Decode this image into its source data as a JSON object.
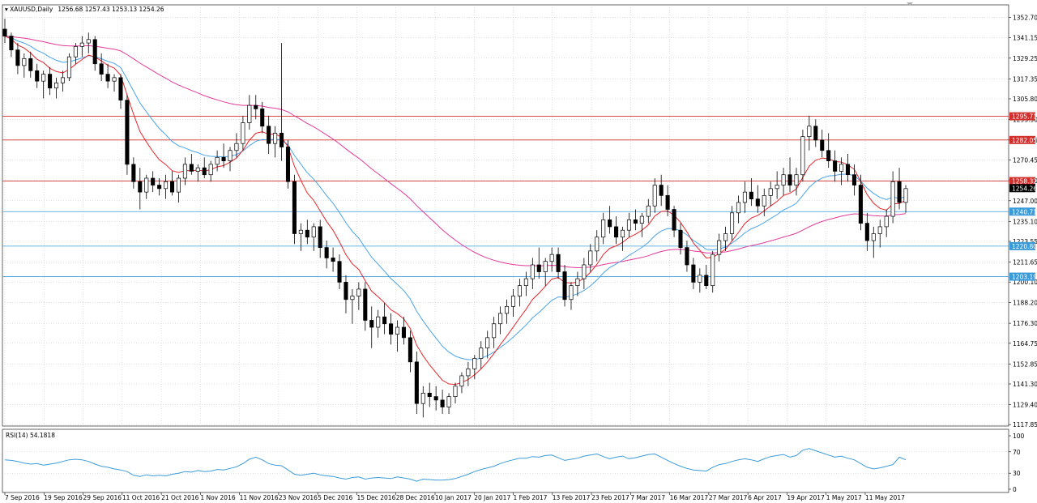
{
  "header": {
    "symbol": "XAUUSD,Daily",
    "ohlc": "1256.68 1257.43 1253.13 1254.26"
  },
  "rsi_header": "RSI(14) 54.1818",
  "colors": {
    "background": "#ffffff",
    "grid": "#c0c0c0",
    "bull_candle": "#ffffff",
    "bear_candle": "#000000",
    "ma_fast": "#e8262b",
    "ma_mid": "#4aa3e8",
    "ma_slow": "#e23a9b",
    "resistance_line": "#d0312d",
    "support_line": "#3b9bd9",
    "rsi_line": "#3b9bd9"
  },
  "chart_data": [
    {
      "type": "candlestick",
      "title": "XAUUSD,Daily",
      "ylim": [
        1117.0,
        1360.0
      ],
      "y_ticks": [
        "1352.70",
        "1341.15",
        "1329.25",
        "1317.35",
        "1305.80",
        "1293.90",
        "1282.05",
        "1270.45",
        "1258.60",
        "1247.00",
        "1235.10",
        "1223.55",
        "1211.65",
        "1200.10",
        "1188.20",
        "1176.30",
        "1164.75",
        "1152.85",
        "1141.30",
        "1129.40",
        "1117.85"
      ],
      "x_ticks": [
        "7 Sep 2016",
        "19 Sep 2016",
        "29 Sep 2016",
        "11 Oct 2016",
        "21 Oct 2016",
        "1 Nov 2016",
        "11 Nov 2016",
        "23 Nov 2016",
        "5 Dec 2016",
        "15 Dec 2016",
        "28 Dec 2016",
        "10 Jan 2017",
        "20 Jan 2017",
        "1 Feb 2017",
        "13 Feb 2017",
        "23 Feb 2017",
        "7 Mar 2017",
        "16 Mar 2017",
        "27 Mar 2017",
        "6 Apr 2017",
        "19 Apr 2017",
        "1 May 2017",
        "11 May 2017"
      ],
      "horizontal_lines": [
        {
          "price": 1295.71,
          "label": "1295.71",
          "kind": "resistance"
        },
        {
          "price": 1282.05,
          "label": "1282.05",
          "kind": "resistance"
        },
        {
          "price": 1258.32,
          "label": "1258.32",
          "kind": "resistance"
        },
        {
          "price": 1240.71,
          "label": "1240.71",
          "kind": "support"
        },
        {
          "price": 1220.8,
          "label": "1220.80",
          "kind": "support"
        },
        {
          "price": 1203.19,
          "label": "1203.19",
          "kind": "support"
        }
      ],
      "current_price": {
        "price": 1254.26,
        "label": "1254.26"
      },
      "candles_ohlc": [
        [
          1346,
          1352,
          1338,
          1342
        ],
        [
          1342,
          1344,
          1330,
          1334
        ],
        [
          1334,
          1338,
          1320,
          1325
        ],
        [
          1325,
          1332,
          1318,
          1329
        ],
        [
          1329,
          1333,
          1318,
          1322
        ],
        [
          1322,
          1326,
          1312,
          1316
        ],
        [
          1316,
          1322,
          1306,
          1320
        ],
        [
          1320,
          1324,
          1308,
          1312
        ],
        [
          1312,
          1318,
          1306,
          1315
        ],
        [
          1315,
          1322,
          1310,
          1318
        ],
        [
          1318,
          1332,
          1316,
          1330
        ],
        [
          1330,
          1338,
          1326,
          1336
        ],
        [
          1336,
          1342,
          1330,
          1338
        ],
        [
          1338,
          1344,
          1332,
          1340
        ],
        [
          1340,
          1342,
          1322,
          1326
        ],
        [
          1326,
          1332,
          1316,
          1320
        ],
        [
          1320,
          1326,
          1312,
          1316
        ],
        [
          1316,
          1320,
          1310,
          1318
        ],
        [
          1318,
          1320,
          1300,
          1305
        ],
        [
          1305,
          1308,
          1262,
          1268
        ],
        [
          1268,
          1272,
          1254,
          1258
        ],
        [
          1258,
          1266,
          1242,
          1252
        ],
        [
          1252,
          1262,
          1248,
          1260
        ],
        [
          1260,
          1264,
          1252,
          1256
        ],
        [
          1256,
          1260,
          1250,
          1254
        ],
        [
          1254,
          1262,
          1248,
          1258
        ],
        [
          1258,
          1264,
          1250,
          1252
        ],
        [
          1252,
          1262,
          1246,
          1260
        ],
        [
          1260,
          1272,
          1256,
          1268
        ],
        [
          1268,
          1274,
          1262,
          1264
        ],
        [
          1264,
          1268,
          1258,
          1266
        ],
        [
          1266,
          1272,
          1260,
          1262
        ],
        [
          1262,
          1270,
          1258,
          1268
        ],
        [
          1268,
          1276,
          1264,
          1272
        ],
        [
          1272,
          1280,
          1266,
          1270
        ],
        [
          1270,
          1278,
          1264,
          1276
        ],
        [
          1276,
          1286,
          1272,
          1280
        ],
        [
          1280,
          1296,
          1276,
          1292
        ],
        [
          1292,
          1308,
          1288,
          1302
        ],
        [
          1302,
          1308,
          1294,
          1300
        ],
        [
          1300,
          1304,
          1286,
          1290
        ],
        [
          1290,
          1296,
          1274,
          1280
        ],
        [
          1280,
          1290,
          1272,
          1286
        ],
        [
          1286,
          1338,
          1270,
          1278
        ],
        [
          1278,
          1282,
          1254,
          1258
        ],
        [
          1258,
          1262,
          1222,
          1228
        ],
        [
          1228,
          1234,
          1218,
          1230
        ],
        [
          1230,
          1236,
          1222,
          1226
        ],
        [
          1226,
          1234,
          1218,
          1232
        ],
        [
          1232,
          1236,
          1214,
          1220
        ],
        [
          1220,
          1224,
          1208,
          1214
        ],
        [
          1214,
          1220,
          1206,
          1212
        ],
        [
          1212,
          1216,
          1196,
          1200
        ],
        [
          1200,
          1204,
          1182,
          1190
        ],
        [
          1190,
          1196,
          1176,
          1192
        ],
        [
          1192,
          1200,
          1184,
          1196
        ],
        [
          1196,
          1200,
          1172,
          1178
        ],
        [
          1178,
          1186,
          1162,
          1174
        ],
        [
          1174,
          1184,
          1168,
          1180
        ],
        [
          1180,
          1188,
          1170,
          1176
        ],
        [
          1176,
          1182,
          1164,
          1170
        ],
        [
          1170,
          1178,
          1160,
          1174
        ],
        [
          1174,
          1180,
          1164,
          1168
        ],
        [
          1168,
          1172,
          1148,
          1154
        ],
        [
          1154,
          1160,
          1124,
          1130
        ],
        [
          1130,
          1140,
          1122,
          1136
        ],
        [
          1136,
          1142,
          1128,
          1134
        ],
        [
          1134,
          1140,
          1126,
          1132
        ],
        [
          1132,
          1138,
          1124,
          1128
        ],
        [
          1128,
          1136,
          1124,
          1134
        ],
        [
          1134,
          1142,
          1130,
          1140
        ],
        [
          1140,
          1148,
          1136,
          1146
        ],
        [
          1146,
          1154,
          1140,
          1150
        ],
        [
          1150,
          1158,
          1144,
          1156
        ],
        [
          1156,
          1166,
          1150,
          1162
        ],
        [
          1162,
          1172,
          1156,
          1168
        ],
        [
          1168,
          1180,
          1162,
          1176
        ],
        [
          1176,
          1186,
          1170,
          1182
        ],
        [
          1182,
          1190,
          1176,
          1186
        ],
        [
          1186,
          1196,
          1180,
          1192
        ],
        [
          1192,
          1202,
          1186,
          1198
        ],
        [
          1198,
          1206,
          1192,
          1202
        ],
        [
          1202,
          1214,
          1196,
          1210
        ],
        [
          1210,
          1220,
          1202,
          1206
        ],
        [
          1206,
          1214,
          1198,
          1212
        ],
        [
          1212,
          1220,
          1206,
          1216
        ],
        [
          1216,
          1220,
          1202,
          1206
        ],
        [
          1206,
          1210,
          1186,
          1190
        ],
        [
          1190,
          1200,
          1184,
          1198
        ],
        [
          1198,
          1206,
          1192,
          1202
        ],
        [
          1202,
          1214,
          1196,
          1210
        ],
        [
          1210,
          1222,
          1206,
          1218
        ],
        [
          1218,
          1230,
          1212,
          1226
        ],
        [
          1226,
          1240,
          1222,
          1236
        ],
        [
          1236,
          1244,
          1228,
          1232
        ],
        [
          1232,
          1238,
          1222,
          1226
        ],
        [
          1226,
          1232,
          1218,
          1230
        ],
        [
          1230,
          1240,
          1226,
          1236
        ],
        [
          1236,
          1242,
          1230,
          1234
        ],
        [
          1234,
          1240,
          1226,
          1238
        ],
        [
          1238,
          1248,
          1234,
          1244
        ],
        [
          1244,
          1260,
          1240,
          1256
        ],
        [
          1256,
          1262,
          1244,
          1250
        ],
        [
          1250,
          1256,
          1238,
          1242
        ],
        [
          1242,
          1244,
          1226,
          1230
        ],
        [
          1230,
          1234,
          1216,
          1220
        ],
        [
          1220,
          1224,
          1206,
          1210
        ],
        [
          1210,
          1214,
          1196,
          1200
        ],
        [
          1200,
          1208,
          1194,
          1204
        ],
        [
          1204,
          1210,
          1196,
          1198
        ],
        [
          1198,
          1218,
          1194,
          1216
        ],
        [
          1216,
          1228,
          1212,
          1224
        ],
        [
          1224,
          1232,
          1218,
          1228
        ],
        [
          1228,
          1244,
          1224,
          1240
        ],
        [
          1240,
          1250,
          1234,
          1246
        ],
        [
          1246,
          1258,
          1240,
          1252
        ],
        [
          1252,
          1260,
          1244,
          1248
        ],
        [
          1248,
          1256,
          1240,
          1244
        ],
        [
          1244,
          1254,
          1238,
          1250
        ],
        [
          1250,
          1258,
          1244,
          1254
        ],
        [
          1254,
          1264,
          1248,
          1256
        ],
        [
          1256,
          1266,
          1250,
          1262
        ],
        [
          1262,
          1272,
          1252,
          1256
        ],
        [
          1256,
          1266,
          1250,
          1262
        ],
        [
          1262,
          1288,
          1258,
          1284
        ],
        [
          1284,
          1296,
          1276,
          1290
        ],
        [
          1290,
          1294,
          1278,
          1282
        ],
        [
          1282,
          1288,
          1272,
          1276
        ],
        [
          1276,
          1286,
          1266,
          1270
        ],
        [
          1270,
          1276,
          1258,
          1264
        ],
        [
          1264,
          1272,
          1256,
          1268
        ],
        [
          1268,
          1274,
          1258,
          1262
        ],
        [
          1262,
          1268,
          1250,
          1256
        ],
        [
          1256,
          1262,
          1230,
          1234
        ],
        [
          1234,
          1240,
          1218,
          1224
        ],
        [
          1224,
          1232,
          1214,
          1228
        ],
        [
          1228,
          1236,
          1220,
          1232
        ],
        [
          1232,
          1242,
          1226,
          1238
        ],
        [
          1238,
          1264,
          1234,
          1258
        ],
        [
          1258,
          1266,
          1242,
          1246
        ],
        [
          1246,
          1256,
          1240,
          1254
        ]
      ],
      "series": [
        {
          "name": "",
          "role": "ma_fast"
        },
        {
          "name": "",
          "role": "ma_mid"
        },
        {
          "name": "",
          "role": "ma_slow"
        }
      ]
    },
    {
      "type": "line",
      "title": "RSI(14) 54.1818",
      "ylim": [
        0,
        100
      ],
      "y_ticks": [
        "100",
        "70",
        "30",
        "0"
      ],
      "levels": [
        70,
        30
      ],
      "values": [
        55,
        54,
        52,
        49,
        47,
        48,
        45,
        47,
        49,
        52,
        55,
        56,
        55,
        52,
        47,
        43,
        41,
        38,
        36,
        33,
        26,
        24,
        27,
        25,
        26,
        25,
        28,
        30,
        33,
        32,
        35,
        33,
        34,
        37,
        36,
        39,
        42,
        48,
        56,
        60,
        55,
        48,
        45,
        44,
        36,
        28,
        26,
        28,
        30,
        27,
        25,
        24,
        21,
        19,
        22,
        23,
        19,
        21,
        22,
        21,
        20,
        23,
        21,
        19,
        15,
        19,
        18,
        17,
        17,
        18,
        20,
        24,
        28,
        33,
        37,
        40,
        43,
        48,
        52,
        55,
        58,
        58,
        61,
        60,
        63,
        64,
        59,
        54,
        56,
        58,
        62,
        64,
        66,
        61,
        57,
        60,
        62,
        57,
        59,
        62,
        65,
        66,
        60,
        54,
        48,
        43,
        39,
        36,
        35,
        34,
        41,
        46,
        48,
        52,
        55,
        57,
        55,
        52,
        57,
        61,
        63,
        65,
        60,
        63,
        73,
        76,
        72,
        68,
        64,
        60,
        62,
        58,
        55,
        48,
        41,
        38,
        40,
        43,
        46,
        60,
        55
      ]
    }
  ]
}
